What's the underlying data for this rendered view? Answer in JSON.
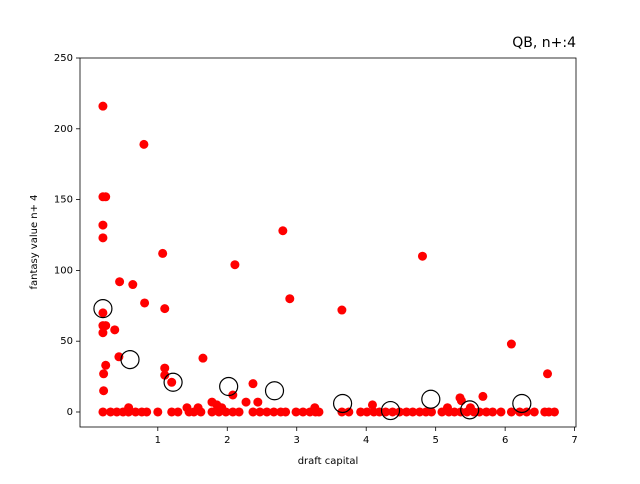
{
  "chart_data": {
    "type": "scatter",
    "title": "QB, n+:4",
    "xlabel": "draft capital",
    "ylabel": "fantasy value n+ 4",
    "xlim": [
      -0.12,
      7.02
    ],
    "ylim": [
      -10.6,
      250
    ],
    "xticks": [
      1,
      2,
      3,
      4,
      5,
      6,
      7
    ],
    "yticks": [
      0,
      50,
      100,
      150,
      200,
      250
    ],
    "series": [
      {
        "color": "#ff0000",
        "marker": "filled",
        "x": [
          0.21,
          0.32,
          0.41,
          0.5,
          0.58,
          0.68,
          0.77,
          0.84,
          1,
          1.2,
          1.29,
          1.45,
          1.52,
          1.62,
          1.78,
          1.88,
          1.98,
          2.08,
          2.17,
          2.37,
          2.47,
          2.57,
          2.67,
          2.77,
          2.84,
          2.99,
          3.09,
          3.19,
          3.27,
          3.32,
          3.65,
          3.75,
          3.92,
          4.01,
          4.11,
          4.19,
          4.28,
          4.38,
          4.48,
          4.58,
          4.67,
          4.77,
          4.86,
          4.94,
          5.09,
          5.19,
          5.27,
          5.36,
          5.45,
          5.55,
          5.63,
          5.73,
          5.82,
          5.94,
          6.09,
          6.21,
          6.31,
          6.42,
          6.57,
          6.63,
          6.71,
          0.21,
          0.21,
          0.25,
          0.21,
          0.21,
          0.8,
          1.07,
          1.1,
          2.11,
          2.8,
          2.9,
          3.65,
          4.81,
          0.45,
          0.64,
          0.81,
          0.21,
          0.25,
          0.21,
          0.38,
          0.21,
          0.25,
          0.44,
          0.22,
          0.22,
          1.1,
          1.1,
          1.2,
          1.65,
          1.78,
          1.85,
          1.92,
          2.08,
          2.27,
          2.37,
          2.44,
          1.42,
          1.58,
          6.09,
          6.61,
          5.37,
          5.17,
          5.68,
          4.09,
          3.26,
          0.58,
          5.5,
          5.35
        ],
        "values": [
          0,
          0,
          0,
          0,
          0,
          0,
          0,
          0,
          0,
          0,
          0,
          0,
          0,
          0,
          0,
          0,
          0,
          0,
          0,
          0,
          0,
          0,
          0,
          0,
          0,
          0,
          0,
          0,
          0,
          0,
          0,
          0,
          0,
          0,
          0,
          0,
          0,
          0,
          0,
          0,
          0,
          0,
          0,
          0,
          0,
          0,
          0,
          0,
          0,
          0,
          0,
          0,
          0,
          0,
          0,
          0,
          0,
          0,
          0,
          0,
          0,
          216,
          152,
          152,
          132,
          123,
          189,
          112,
          73,
          104,
          128,
          80,
          72,
          110,
          92,
          90,
          77,
          70,
          61,
          61,
          58,
          56,
          33,
          39,
          27,
          15,
          31,
          26,
          21,
          38,
          7,
          5,
          3,
          12,
          7,
          20,
          7,
          3,
          3,
          48,
          27,
          8,
          3,
          11,
          5,
          3,
          3,
          3,
          10
        ]
      },
      {
        "color": "#000000",
        "marker": "open",
        "x": [
          0.21,
          0.6,
          1.22,
          2.02,
          2.68,
          3.66,
          4.35,
          4.93,
          5.49,
          6.24
        ],
        "values": [
          73,
          37,
          21,
          18,
          15,
          6,
          1,
          9,
          1.5,
          6
        ]
      }
    ]
  }
}
